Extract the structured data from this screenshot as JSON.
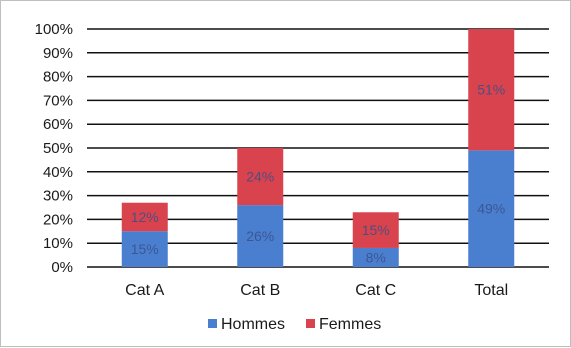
{
  "chart_data": {
    "type": "bar",
    "stacked": true,
    "categories": [
      "Cat A",
      "Cat B",
      "Cat C",
      "Total"
    ],
    "series": [
      {
        "name": "Hommes",
        "color": "#4a7fd0",
        "values": [
          15,
          26,
          8,
          49
        ],
        "labels": [
          "15%",
          "26%",
          "8%",
          "49%"
        ]
      },
      {
        "name": "Femmes",
        "color": "#d9434e",
        "values": [
          12,
          24,
          15,
          51
        ],
        "labels": [
          "12%",
          "24%",
          "15%",
          "51%"
        ]
      }
    ],
    "ylim": [
      0,
      100
    ],
    "yticks": [
      "0%",
      "10%",
      "20%",
      "30%",
      "40%",
      "50%",
      "60%",
      "70%",
      "80%",
      "90%",
      "100%"
    ],
    "grid": true,
    "legend_position": "bottom"
  }
}
